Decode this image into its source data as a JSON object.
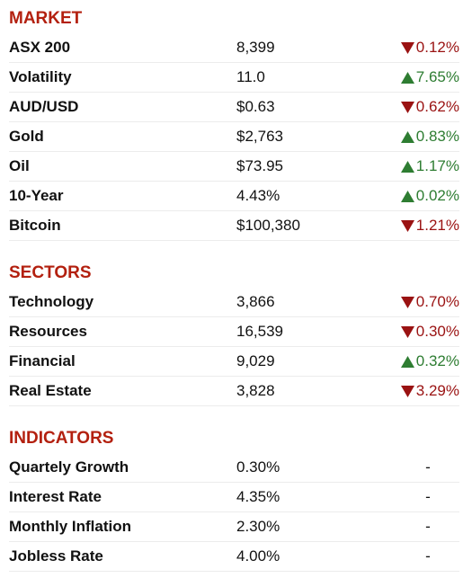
{
  "sections": [
    {
      "title": "MARKET",
      "rows": [
        {
          "name": "ASX 200",
          "value": "8,399",
          "change": "0.12%",
          "direction": "down"
        },
        {
          "name": "Volatility",
          "value": "11.0",
          "change": "7.65%",
          "direction": "up"
        },
        {
          "name": "AUD/USD",
          "value": "$0.63",
          "change": "0.62%",
          "direction": "down"
        },
        {
          "name": "Gold",
          "value": "$2,763",
          "change": "0.83%",
          "direction": "up"
        },
        {
          "name": "Oil",
          "value": "$73.95",
          "change": "1.17%",
          "direction": "up"
        },
        {
          "name": "10-Year",
          "value": "4.43%",
          "change": "0.02%",
          "direction": "up"
        },
        {
          "name": "Bitcoin",
          "value": "$100,380",
          "change": "1.21%",
          "direction": "down"
        }
      ]
    },
    {
      "title": "SECTORS",
      "rows": [
        {
          "name": "Technology",
          "value": "3,866",
          "change": "0.70%",
          "direction": "down"
        },
        {
          "name": "Resources",
          "value": "16,539",
          "change": "0.30%",
          "direction": "down"
        },
        {
          "name": "Financial",
          "value": "9,029",
          "change": "0.32%",
          "direction": "up"
        },
        {
          "name": "Real Estate",
          "value": "3,828",
          "change": "3.29%",
          "direction": "down"
        }
      ]
    },
    {
      "title": "INDICATORS",
      "rows": [
        {
          "name": "Quartely Growth",
          "value": "0.30%",
          "change": "-"
        },
        {
          "name": "Interest Rate",
          "value": "4.35%",
          "change": "-"
        },
        {
          "name": "Monthly Inflation",
          "value": "2.30%",
          "change": "-"
        },
        {
          "name": "Jobless Rate",
          "value": "4.00%",
          "change": "-"
        }
      ]
    }
  ]
}
